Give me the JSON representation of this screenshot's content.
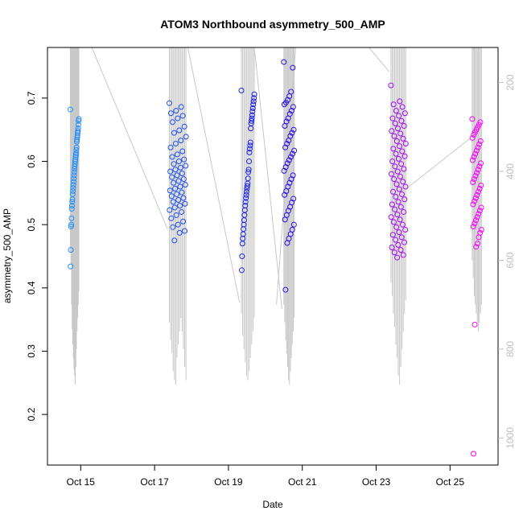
{
  "chart_data": {
    "type": "scatter",
    "title": "ATOM3 Northbound asymmetry_500_AMP",
    "xlabel": "Date",
    "ylabel": "asymmetry_500_AMP",
    "x_unit": "day of October",
    "xlim": [
      14.1,
      26.3
    ],
    "ylim": [
      0.12,
      0.78
    ],
    "x_ticks": [
      15,
      17,
      19,
      21,
      23,
      25
    ],
    "x_tick_labels": [
      "Oct 15",
      "Oct 17",
      "Oct 19",
      "Oct 21",
      "Oct 23",
      "Oct 25"
    ],
    "y_ticks": [
      0.2,
      0.3,
      0.4,
      0.5,
      0.6,
      0.7
    ],
    "y_tick_labels": [
      "0.2",
      "0.3",
      "0.4",
      "0.5",
      "0.6",
      "0.7"
    ],
    "y2_ticks": [
      200,
      400,
      600,
      800,
      1000
    ],
    "y2_tick_labels": [
      "200",
      "400",
      "600",
      "800",
      "1000"
    ],
    "y2_range_top_to_bottom": [
      121,
      1061
    ],
    "y2_reversed": true,
    "grid": false,
    "legend": "none",
    "point_color_start": "#1e90ff",
    "point_color_mid": "#1a10e0",
    "point_color_end": "#ff00ff",
    "line_color": "#c8c8c8",
    "clusters": [
      {
        "label": "Oct 15",
        "x_range": [
          14.72,
          14.95
        ],
        "y_values": [
          0.682,
          0.667,
          0.664,
          0.658,
          0.652,
          0.648,
          0.645,
          0.641,
          0.638,
          0.634,
          0.631,
          0.622,
          0.618,
          0.613,
          0.61,
          0.607,
          0.603,
          0.6,
          0.596,
          0.592,
          0.588,
          0.583,
          0.578,
          0.573,
          0.568,
          0.563,
          0.558,
          0.553,
          0.548,
          0.54,
          0.536,
          0.53,
          0.525,
          0.51,
          0.5,
          0.497,
          0.46,
          0.434
        ],
        "lines_y2": [
          580,
          610,
          700,
          755,
          790,
          820,
          845,
          860,
          880,
          840,
          800,
          760,
          730,
          700,
          670
        ]
      },
      {
        "label": "Oct 17",
        "x_range": [
          17.4,
          17.85
        ],
        "y_values": [
          0.692,
          0.686,
          0.68,
          0.676,
          0.672,
          0.668,
          0.662,
          0.655,
          0.649,
          0.645,
          0.639,
          0.633,
          0.628,
          0.622,
          0.616,
          0.611,
          0.607,
          0.603,
          0.6,
          0.596,
          0.593,
          0.59,
          0.587,
          0.584,
          0.581,
          0.578,
          0.575,
          0.572,
          0.569,
          0.566,
          0.563,
          0.56,
          0.557,
          0.554,
          0.551,
          0.548,
          0.545,
          0.542,
          0.539,
          0.536,
          0.533,
          0.53,
          0.527,
          0.523,
          0.52,
          0.515,
          0.51,
          0.505,
          0.5,
          0.496,
          0.49,
          0.487,
          0.475
        ],
        "lines_y2": [
          740,
          780,
          810,
          850,
          870,
          880,
          820,
          790,
          760,
          730,
          760,
          800,
          840,
          870
        ]
      },
      {
        "label": "Oct 19",
        "x_range": [
          19.35,
          19.7
        ],
        "y_values": [
          0.712,
          0.706,
          0.7,
          0.695,
          0.69,
          0.684,
          0.679,
          0.673,
          0.668,
          0.664,
          0.66,
          0.652,
          0.63,
          0.625,
          0.62,
          0.614,
          0.6,
          0.587,
          0.583,
          0.573,
          0.565,
          0.561,
          0.557,
          0.552,
          0.547,
          0.542,
          0.536,
          0.53,
          0.523,
          0.515,
          0.507,
          0.5,
          0.493,
          0.485,
          0.478,
          0.47,
          0.45,
          0.428
        ],
        "lines_y2": [
          720,
          770,
          800,
          830,
          860,
          870,
          850,
          820,
          790,
          760,
          730
        ]
      },
      {
        "label": "Oct 21",
        "x_range": [
          20.5,
          20.78
        ],
        "y_values": [
          0.757,
          0.748,
          0.71,
          0.703,
          0.697,
          0.693,
          0.69,
          0.686,
          0.68,
          0.675,
          0.668,
          0.663,
          0.656,
          0.65,
          0.645,
          0.64,
          0.633,
          0.628,
          0.622,
          0.617,
          0.612,
          0.607,
          0.602,
          0.597,
          0.591,
          0.585,
          0.578,
          0.572,
          0.566,
          0.56,
          0.553,
          0.547,
          0.541,
          0.535,
          0.528,
          0.522,
          0.515,
          0.508,
          0.5,
          0.492,
          0.485,
          0.478,
          0.471,
          0.397
        ],
        "lines_y2": [
          700,
          740,
          780,
          810,
          840,
          870,
          880,
          850,
          820,
          790,
          760,
          730
        ]
      },
      {
        "label": "Oct 23",
        "x_range": [
          23.4,
          23.8
        ],
        "y_values": [
          0.72,
          0.695,
          0.69,
          0.686,
          0.68,
          0.676,
          0.672,
          0.668,
          0.664,
          0.66,
          0.656,
          0.652,
          0.648,
          0.644,
          0.64,
          0.636,
          0.632,
          0.628,
          0.624,
          0.62,
          0.616,
          0.612,
          0.608,
          0.604,
          0.6,
          0.596,
          0.592,
          0.588,
          0.584,
          0.58,
          0.576,
          0.572,
          0.568,
          0.564,
          0.56,
          0.556,
          0.552,
          0.548,
          0.544,
          0.54,
          0.536,
          0.532,
          0.528,
          0.524,
          0.52,
          0.516,
          0.512,
          0.508,
          0.504,
          0.5,
          0.496,
          0.492,
          0.488,
          0.484,
          0.48,
          0.476,
          0.472,
          0.468,
          0.464,
          0.46,
          0.456,
          0.452,
          0.448
        ],
        "lines_y2": [
          650,
          680,
          720,
          750,
          790,
          820,
          860,
          880,
          840,
          800,
          760,
          720,
          690
        ]
      },
      {
        "label": "Oct 25",
        "x_range": [
          25.6,
          25.85
        ],
        "y_values": [
          0.667,
          0.662,
          0.658,
          0.654,
          0.65,
          0.646,
          0.642,
          0.637,
          0.632,
          0.627,
          0.622,
          0.617,
          0.612,
          0.607,
          0.602,
          0.597,
          0.592,
          0.587,
          0.582,
          0.577,
          0.572,
          0.567,
          0.562,
          0.557,
          0.552,
          0.547,
          0.542,
          0.537,
          0.532,
          0.527,
          0.522,
          0.517,
          0.512,
          0.507,
          0.502,
          0.497,
          0.492,
          0.487,
          0.48,
          0.47,
          0.465,
          0.342,
          0.138
        ],
        "lines_y2": [
          600,
          640,
          680,
          700,
          720,
          740,
          760,
          740,
          720,
          700
        ]
      }
    ],
    "connectors_y2": [
      {
        "x1": 15.3,
        "y1": 121,
        "x2": 17.35,
        "y2": 530
      },
      {
        "x1": 17.9,
        "y1": 121,
        "x2": 19.3,
        "y2": 695
      },
      {
        "x1": 19.7,
        "y1": 121,
        "x2": 20.45,
        "y2": 710
      },
      {
        "x1": 20.82,
        "y1": 121,
        "x2": 20.3,
        "y2": 700
      },
      {
        "x1": 22.8,
        "y1": 121,
        "x2": 23.35,
        "y2": 175
      },
      {
        "x1": 23.8,
        "y1": 440,
        "x2": 25.55,
        "y2": 325
      }
    ]
  }
}
